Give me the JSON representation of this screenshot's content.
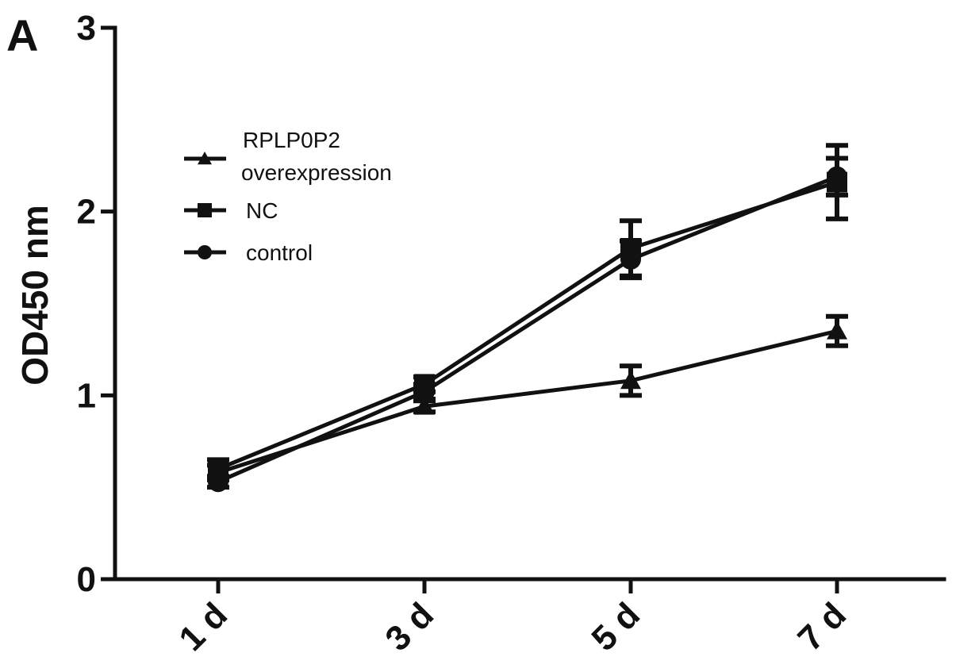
{
  "panel_label": "A",
  "chart_data": {
    "type": "line",
    "title": "",
    "xlabel": "",
    "ylabel": "OD450 nm",
    "categories": [
      "1 d",
      "3 d",
      "5 d",
      "7 d"
    ],
    "ylim": [
      0,
      3
    ],
    "yticks": [
      "0",
      "1",
      "2",
      "3"
    ],
    "grid": false,
    "legend_position": "top-left",
    "series": [
      {
        "name": "RPLP0P2\noverexpression",
        "name_lines": [
          "RPLP0P2",
          "overexpression"
        ],
        "marker": "triangle",
        "values": [
          0.58,
          0.94,
          1.08,
          1.35
        ],
        "errors": [
          0.04,
          0.03,
          0.08,
          0.08
        ]
      },
      {
        "name": "NC",
        "name_lines": [
          "NC"
        ],
        "marker": "square",
        "values": [
          0.6,
          1.06,
          1.8,
          2.16
        ],
        "errors": [
          0.05,
          0.04,
          0.15,
          0.2
        ]
      },
      {
        "name": "control",
        "name_lines": [
          "control"
        ],
        "marker": "circle",
        "values": [
          0.53,
          1.02,
          1.74,
          2.19
        ],
        "errors": [
          0.03,
          0.04,
          0.1,
          0.1
        ]
      }
    ]
  }
}
